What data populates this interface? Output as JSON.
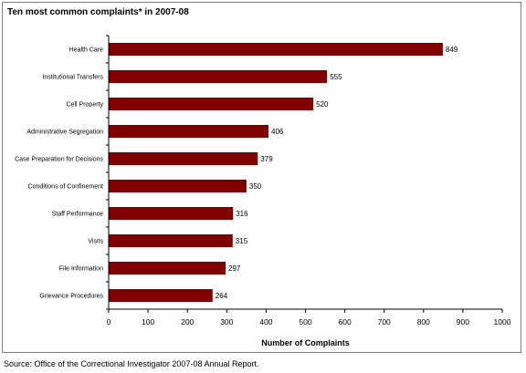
{
  "title": "Ten most common complaints* in 2007-08",
  "source": "Source:  Office of the Correctional Investigator 2007-08 Annual Report.",
  "chart_data": {
    "type": "bar",
    "orientation": "horizontal",
    "title": "Ten most common complaints* in 2007-08",
    "xlabel": "Number of Complaints",
    "ylabel": "",
    "categories": [
      "Health Care",
      "Institutional Transfers",
      "Cell Property",
      "Administrative Segregation",
      "Case Preparation for Decisions",
      "Conditions of Confinement",
      "Staff Performance",
      "Visits",
      "File Information",
      "Grievance Procedures"
    ],
    "values": [
      849,
      555,
      520,
      406,
      379,
      350,
      316,
      315,
      297,
      264
    ],
    "xlim": [
      0,
      1000
    ],
    "xticks": [
      0,
      100,
      200,
      300,
      400,
      500,
      600,
      700,
      800,
      900,
      1000
    ],
    "bar_color": "#800000",
    "grid": false,
    "legend": "none"
  }
}
